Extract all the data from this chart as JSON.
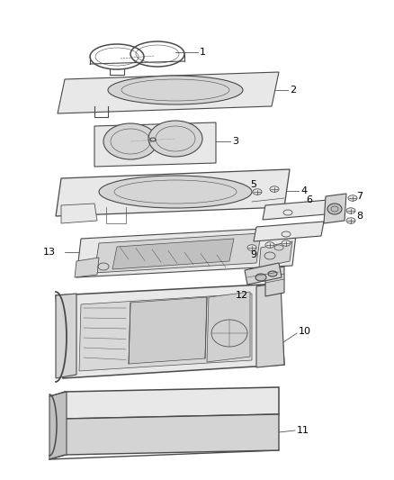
{
  "background_color": "#ffffff",
  "line_color": "#4a4a4a",
  "label_color": "#000000",
  "figsize": [
    4.38,
    5.33
  ],
  "dpi": 100,
  "lw": 0.8,
  "gray_fill": "#e8e8e8",
  "dark_gray": "#c0c0c0",
  "mid_gray": "#d4d4d4"
}
